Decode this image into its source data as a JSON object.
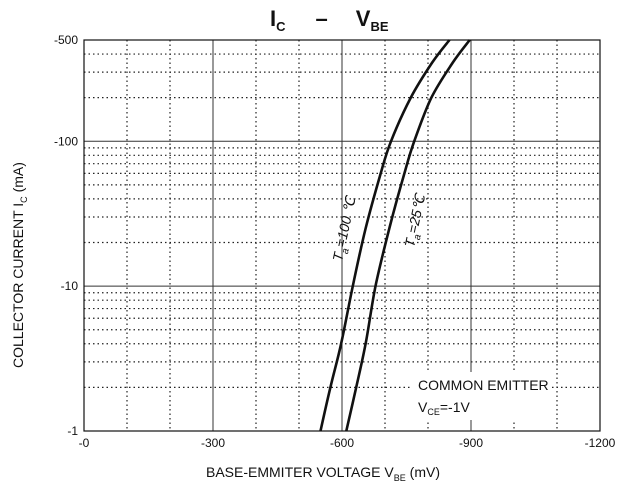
{
  "title": {
    "left_main": "I",
    "left_sub": "C",
    "dash": "–",
    "right_main": "V",
    "right_sub": "BE"
  },
  "annotation": {
    "line1": "COMMON EMITTER",
    "line2_main": "V",
    "line2_sub": "CE",
    "line2_value": "=-1V"
  },
  "chart_data": {
    "type": "line",
    "x_scale": "linear",
    "y_scale": "log",
    "xlim": [
      0,
      -1200
    ],
    "ylim": [
      -1,
      -500
    ],
    "x_major_ticks": [
      0,
      -300,
      -600,
      -900,
      -1200
    ],
    "x_tick_labels": [
      "-0",
      "-300",
      "-600",
      "-900",
      "-1200"
    ],
    "x_minor_step": -100,
    "y_major_ticks": [
      -1,
      -10,
      -100,
      -500
    ],
    "y_tick_labels": [
      "-1",
      "-10",
      "-100",
      "-500"
    ],
    "xlabel": {
      "main": "BASE-EMMITER VOLTAGE   V",
      "sub": "BE",
      "unit": "  (mV)"
    },
    "ylabel": {
      "main": "COLLECTOR CURRENT   I",
      "sub": "C",
      "unit": "  (mA)"
    },
    "grid": {
      "major": "solid",
      "minor": "dotted"
    },
    "series": [
      {
        "label_main": "T",
        "label_sub": "a",
        "label_value": "=100 ℃",
        "color": "#111111",
        "x": [
          -550,
          -573,
          -598,
          -625,
          -655,
          -690,
          -714,
          -760,
          -810,
          -850
        ],
        "y": [
          -1,
          -2,
          -4,
          -10,
          -25,
          -60,
          -100,
          -200,
          -350,
          -500
        ]
      },
      {
        "label_main": "T",
        "label_sub": "a",
        "label_value": "=25℃",
        "color": "#111111",
        "x": [
          -610,
          -633,
          -655,
          -678,
          -710,
          -745,
          -768,
          -808,
          -858,
          -897
        ],
        "y": [
          -1,
          -2,
          -4,
          -10,
          -25,
          -60,
          -100,
          -200,
          -350,
          -500
        ]
      }
    ]
  }
}
